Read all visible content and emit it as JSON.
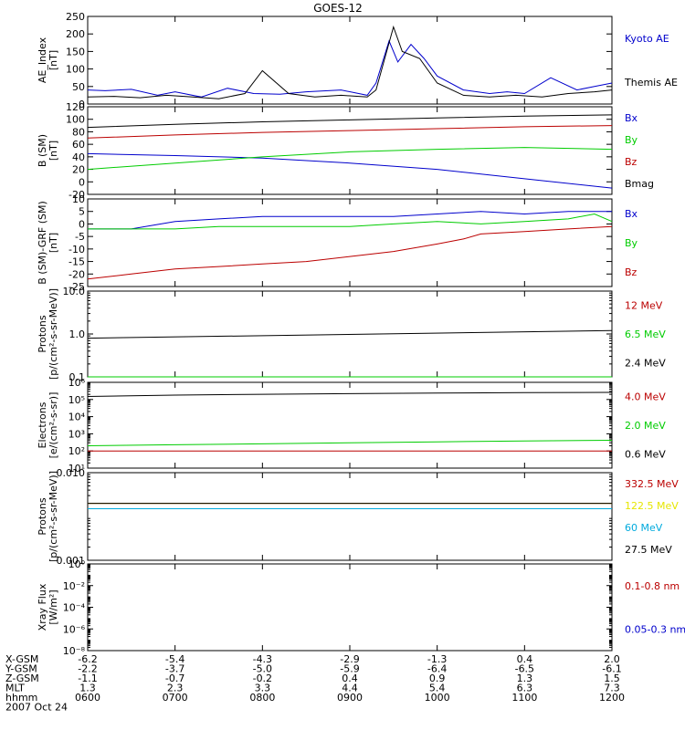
{
  "title": "GOES-12",
  "colors": {
    "black": "#000000",
    "blue": "#0000cc",
    "green": "#00cc00",
    "red": "#bb0000",
    "yellow": "#e6e600",
    "cyan": "#00aadd"
  },
  "footer": {
    "rows": [
      {
        "label": "X-GSM",
        "values": [
          "-6.2",
          "-5.4",
          "-4.3",
          "-2.9",
          "-1.3",
          "0.4",
          "2.0"
        ]
      },
      {
        "label": "Y-GSM",
        "values": [
          "-2.2",
          "-3.7",
          "-5.0",
          "-5.9",
          "-6.4",
          "-6.5",
          "-6.1"
        ]
      },
      {
        "label": "Z-GSM",
        "values": [
          "-1.1",
          "-0.7",
          "-0.2",
          "0.4",
          "0.9",
          "1.3",
          "1.5"
        ]
      },
      {
        "label": "MLT",
        "values": [
          "1.3",
          "2.3",
          "3.3",
          "4.4",
          "5.4",
          "6.3",
          "7.3"
        ]
      },
      {
        "label": "hhmm",
        "values": [
          "0600",
          "0700",
          "0800",
          "0900",
          "1000",
          "1100",
          "1200"
        ]
      }
    ],
    "date": "2007 Oct 24"
  },
  "chart_data": [
    {
      "type": "line",
      "ylabel": [
        "AE_Index",
        "[nT]"
      ],
      "xlim": [
        6,
        12
      ],
      "ylim": [
        0,
        250
      ],
      "yticks": [
        "0",
        "50",
        "100",
        "150",
        "200",
        "250"
      ],
      "series": [
        {
          "name": "Kyoto AE",
          "color": "blue",
          "x": [
            6.0,
            6.2,
            6.5,
            6.8,
            7.0,
            7.3,
            7.6,
            7.9,
            8.2,
            8.5,
            8.9,
            9.2,
            9.3,
            9.45,
            9.55,
            9.7,
            9.85,
            10.0,
            10.3,
            10.6,
            10.8,
            11.0,
            11.3,
            11.6,
            11.8,
            12.0
          ],
          "y": [
            40,
            38,
            42,
            25,
            35,
            20,
            45,
            30,
            28,
            35,
            40,
            25,
            60,
            180,
            120,
            170,
            130,
            80,
            40,
            30,
            35,
            30,
            75,
            40,
            50,
            60
          ]
        },
        {
          "name": "Themis AE",
          "color": "black",
          "x": [
            6.0,
            6.3,
            6.6,
            6.9,
            7.2,
            7.5,
            7.8,
            8.0,
            8.3,
            8.6,
            8.9,
            9.2,
            9.3,
            9.5,
            9.6,
            9.8,
            10.0,
            10.3,
            10.6,
            10.9,
            11.2,
            11.5,
            11.8,
            12.0
          ],
          "y": [
            20,
            22,
            18,
            25,
            20,
            15,
            30,
            95,
            30,
            20,
            25,
            20,
            40,
            220,
            150,
            130,
            60,
            25,
            20,
            25,
            20,
            30,
            35,
            40
          ]
        }
      ]
    },
    {
      "type": "line",
      "ylabel": [
        "B (SM)",
        "[nT]"
      ],
      "xlim": [
        6,
        12
      ],
      "ylim": [
        -20,
        120
      ],
      "yticks": [
        "-20",
        "0",
        "20",
        "40",
        "60",
        "80",
        "100",
        "120"
      ],
      "series": [
        {
          "name": "Bx",
          "color": "blue",
          "x": [
            6,
            7,
            8,
            9,
            10,
            11,
            12
          ],
          "y": [
            45,
            42,
            38,
            30,
            20,
            5,
            -10
          ]
        },
        {
          "name": "By",
          "color": "green",
          "x": [
            6,
            7,
            8,
            9,
            10,
            11,
            12
          ],
          "y": [
            20,
            30,
            40,
            48,
            52,
            55,
            52
          ]
        },
        {
          "name": "Bz",
          "color": "red",
          "x": [
            6,
            7,
            8,
            9,
            10,
            11,
            12
          ],
          "y": [
            70,
            75,
            79,
            82,
            85,
            88,
            90
          ]
        },
        {
          "name": "Bmag",
          "color": "black",
          "x": [
            6,
            7,
            8,
            9,
            10,
            11,
            12
          ],
          "y": [
            87,
            92,
            96,
            99,
            102,
            105,
            107
          ]
        }
      ]
    },
    {
      "type": "line",
      "ylabel": [
        "B (SM)-GRF (SM)",
        "[nT]"
      ],
      "xlim": [
        6,
        12
      ],
      "ylim": [
        -25,
        10
      ],
      "yticks": [
        "-25",
        "-20",
        "-15",
        "-10",
        "-5",
        "0",
        "5",
        "10"
      ],
      "series": [
        {
          "name": "Bx",
          "color": "blue",
          "x": [
            6,
            6.5,
            7,
            7.5,
            8,
            8.5,
            9,
            9.5,
            10,
            10.5,
            11,
            11.5,
            12
          ],
          "y": [
            -2,
            -2,
            1,
            2,
            3,
            3,
            3,
            3,
            4,
            5,
            4,
            5,
            5
          ]
        },
        {
          "name": "By",
          "color": "green",
          "x": [
            6,
            6.5,
            7,
            7.5,
            8,
            8.5,
            9,
            9.5,
            10,
            10.5,
            11,
            11.5,
            11.8,
            12
          ],
          "y": [
            -2,
            -2,
            -2,
            -1,
            -1,
            -1,
            -1,
            0,
            1,
            0,
            1,
            2,
            4,
            1
          ]
        },
        {
          "name": "Bz",
          "color": "red",
          "x": [
            6,
            6.5,
            7,
            7.5,
            8,
            8.5,
            9,
            9.5,
            10,
            10.3,
            10.5,
            11,
            11.5,
            12
          ],
          "y": [
            -22,
            -20,
            -18,
            -17,
            -16,
            -15,
            -13,
            -11,
            -8,
            -6,
            -4,
            -3,
            -2,
            -1
          ]
        }
      ]
    },
    {
      "type": "line",
      "scale": "log",
      "ylabel": [
        "Protons",
        "[p/(cm²-s-sr-MeV)]"
      ],
      "xlim": [
        6,
        12
      ],
      "ylim": [
        0.1,
        10.0
      ],
      "yticks": [
        "0.1",
        "1.0",
        "10.0"
      ],
      "series": [
        {
          "name": "12 MeV",
          "color": "red",
          "x": [
            6,
            12
          ],
          "y": [
            0.1,
            0.1
          ]
        },
        {
          "name": "6.5 MeV",
          "color": "green",
          "x": [
            6,
            12
          ],
          "y": [
            0.1,
            0.1
          ]
        },
        {
          "name": "2.4 MeV",
          "color": "black",
          "x": [
            6,
            12
          ],
          "y": [
            0.8,
            1.2
          ]
        }
      ]
    },
    {
      "type": "line",
      "scale": "log",
      "ylabel": [
        "Electrons",
        "[e/(cm²-s-sr)]"
      ],
      "xlim": [
        6,
        12
      ],
      "ylim": [
        10,
        1000000
      ],
      "yticks": [
        "10¹",
        "10²",
        "10³",
        "10⁴",
        "10⁵",
        "10⁶"
      ],
      "series": [
        {
          "name": "4.0 MeV",
          "color": "red",
          "x": [
            6,
            12
          ],
          "y": [
            100,
            100
          ]
        },
        {
          "name": "2.0 MeV",
          "color": "green",
          "x": [
            6,
            7,
            8,
            9,
            10,
            11,
            12
          ],
          "y": [
            200,
            230,
            260,
            300,
            340,
            380,
            420
          ]
        },
        {
          "name": "0.6 MeV",
          "color": "black",
          "x": [
            6,
            7,
            8,
            9,
            10,
            11,
            12
          ],
          "y": [
            150000,
            180000,
            200000,
            220000,
            240000,
            250000,
            260000
          ]
        }
      ]
    },
    {
      "type": "line",
      "scale": "log",
      "ylabel": [
        "Protons",
        "[p/(cm²-s-sr-MeV)]"
      ],
      "xlim": [
        6,
        12
      ],
      "ylim": [
        0.001,
        0.1
      ],
      "yticks": [
        "0.001",
        "0.010"
      ],
      "series": [
        {
          "name": "332.5 MeV",
          "color": "red",
          "x": [
            6,
            12
          ],
          "y": [
            0.02,
            0.02
          ]
        },
        {
          "name": "122.5 MeV",
          "color": "yellow",
          "x": [
            6,
            12
          ],
          "y": [
            0.02,
            0.02
          ]
        },
        {
          "name": "60 MeV",
          "color": "cyan",
          "x": [
            6,
            12
          ],
          "y": [
            0.015,
            0.015
          ]
        },
        {
          "name": "27.5 MeV",
          "color": "black",
          "x": [
            6,
            12
          ],
          "y": [
            0.02,
            0.02
          ]
        }
      ]
    },
    {
      "type": "line",
      "scale": "log",
      "ylabel": [
        "Xray Flux",
        "[W/m²]"
      ],
      "xlim": [
        6,
        12
      ],
      "ylim": [
        1e-08,
        1
      ],
      "yticks": [
        "10⁻⁸",
        "10⁻⁶",
        "10⁻⁴",
        "10⁻²",
        "10⁰"
      ],
      "series": [
        {
          "name": "0.1-0.8 nm",
          "color": "red",
          "x": [],
          "y": []
        },
        {
          "name": "0.05-0.3 nm",
          "color": "blue",
          "x": [],
          "y": []
        }
      ]
    }
  ]
}
